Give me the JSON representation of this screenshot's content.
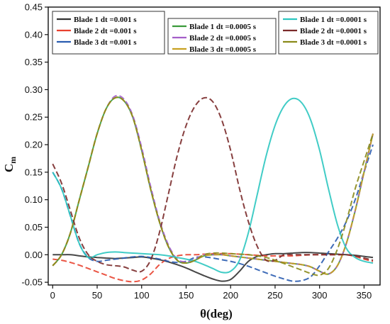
{
  "chart_data": {
    "type": "line",
    "title": "",
    "xlabel": "θ(deg)",
    "ylabel": "C",
    "ylabel_sub": "m",
    "xlim": [
      -5,
      368
    ],
    "ylim": [
      -0.055,
      0.45
    ],
    "xticks": [
      "0",
      "50",
      "100",
      "150",
      "200",
      "250",
      "300",
      "350"
    ],
    "yticks": [
      "-0.05",
      "0.00",
      "0.05",
      "0.10",
      "0.15",
      "0.20",
      "0.25",
      "0.30",
      "0.35",
      "0.40",
      "0.45"
    ],
    "legend_position": "top",
    "series": [
      {
        "name": "Blade 1 dt =0.001 s",
        "color": "#333333",
        "style": "solid",
        "legend_group": 0,
        "x": [
          0,
          10,
          20,
          30,
          40,
          50,
          60,
          70,
          80,
          90,
          100,
          110,
          120,
          130,
          140,
          150,
          160,
          170,
          180,
          190,
          200,
          210,
          220,
          230,
          240,
          250,
          260,
          270,
          280,
          290,
          300,
          310,
          320,
          330,
          340,
          350,
          360
        ],
        "y": [
          0.0,
          0.0,
          0.0,
          -0.002,
          -0.004,
          -0.005,
          -0.006,
          -0.007,
          -0.006,
          -0.005,
          -0.004,
          -0.006,
          -0.009,
          -0.013,
          -0.018,
          -0.024,
          -0.031,
          -0.038,
          -0.044,
          -0.048,
          -0.045,
          -0.03,
          -0.012,
          -0.003,
          0.0,
          0.002,
          0.002,
          0.003,
          0.004,
          0.004,
          0.003,
          0.002,
          0.001,
          0.0,
          -0.001,
          -0.003,
          -0.005
        ]
      },
      {
        "name": "Blade 2 dt =0.001 s",
        "color": "#e8412f",
        "style": "solid",
        "legend_group": 0,
        "x": [
          0,
          10,
          20,
          30,
          40,
          50,
          60,
          70,
          80,
          90,
          100,
          110,
          120,
          130,
          140,
          150,
          160,
          170,
          180,
          190,
          200,
          210,
          220,
          230,
          240,
          250,
          260,
          270,
          280,
          290,
          300,
          310,
          320,
          330,
          340,
          350,
          360
        ],
        "y": [
          -0.008,
          -0.01,
          -0.014,
          -0.019,
          -0.025,
          -0.031,
          -0.037,
          -0.043,
          -0.047,
          -0.049,
          -0.046,
          -0.035,
          -0.018,
          -0.007,
          -0.002,
          0.0,
          0.0,
          0.001,
          0.002,
          0.002,
          0.002,
          0.001,
          0.0,
          -0.001,
          -0.002,
          -0.002,
          -0.002,
          -0.002,
          -0.001,
          0.0,
          0.0,
          0.0,
          0.0,
          0.0,
          -0.003,
          -0.008,
          -0.012
        ]
      },
      {
        "name": "Blade 3 dt =0.001 s",
        "color": "#2a5cb0",
        "style": "solid",
        "legend_group": 0,
        "x": [
          0,
          10,
          20,
          30,
          40,
          50,
          60,
          70,
          80,
          90,
          100,
          110,
          120,
          130,
          140,
          150,
          160,
          170,
          180,
          190,
          200,
          210,
          220,
          230,
          240,
          250,
          260,
          270,
          280,
          290,
          300,
          310,
          320,
          330,
          340,
          350,
          360
        ],
        "y": [
          0.15,
          0.12,
          0.07,
          0.02,
          -0.005,
          -0.012,
          -0.01,
          -0.008,
          -0.006,
          -0.004,
          -0.003,
          -0.005,
          -0.008,
          -0.012,
          -0.014,
          -0.012,
          -0.005,
          -0.004,
          -0.006,
          -0.009,
          -0.012,
          -0.016,
          -0.021,
          -0.027,
          -0.033,
          -0.039,
          -0.044,
          -0.048,
          -0.047,
          -0.04,
          -0.02,
          0.005,
          0.03,
          0.06,
          0.1,
          0.15,
          0.2
        ]
      },
      {
        "name": "Blade 1 dt =0.0005 s",
        "color": "#3a9a3a",
        "style": "solid",
        "legend_group": 1,
        "x": [
          0,
          10,
          20,
          30,
          40,
          50,
          60,
          70,
          80,
          90,
          100,
          110,
          120,
          130,
          140,
          150,
          160,
          170,
          180,
          190,
          200,
          210,
          220,
          230,
          240,
          250,
          260,
          270,
          280,
          290,
          300,
          310,
          320,
          330,
          340,
          350,
          360
        ],
        "y": [
          -0.02,
          0.0,
          0.04,
          0.1,
          0.16,
          0.22,
          0.265,
          0.285,
          0.28,
          0.25,
          0.19,
          0.12,
          0.06,
          0.015,
          -0.01,
          -0.015,
          -0.01,
          -0.002,
          0.0,
          0.0,
          -0.002,
          -0.004,
          -0.006,
          -0.008,
          -0.01,
          -0.012,
          -0.014,
          -0.016,
          -0.018,
          -0.022,
          -0.03,
          -0.035,
          -0.02,
          0.02,
          0.08,
          0.15,
          0.22
        ]
      },
      {
        "name": "Blade 2 dt =0.0005 s",
        "color": "#a45ec8",
        "style": "solid",
        "legend_group": 1,
        "x": [
          0,
          10,
          20,
          30,
          40,
          50,
          60,
          70,
          80,
          90,
          100,
          110,
          120,
          130,
          140,
          150,
          160,
          170,
          180,
          190,
          200,
          210,
          220,
          230,
          240,
          250,
          260,
          270,
          280,
          290,
          300,
          310,
          320,
          330,
          340,
          350,
          360
        ],
        "y": [
          -0.02,
          0.0,
          0.04,
          0.1,
          0.16,
          0.22,
          0.265,
          0.288,
          0.283,
          0.253,
          0.195,
          0.125,
          0.063,
          0.018,
          -0.008,
          -0.013,
          -0.008,
          0.0,
          0.0,
          0.0,
          -0.002,
          -0.004,
          -0.006,
          -0.008,
          -0.01,
          -0.012,
          -0.014,
          -0.016,
          -0.018,
          -0.022,
          -0.03,
          -0.035,
          -0.02,
          0.02,
          0.08,
          0.15,
          0.22
        ]
      },
      {
        "name": "Blade 3 dt =0.0005 s",
        "color": "#c8a020",
        "style": "solid",
        "legend_group": 1,
        "x": [
          0,
          10,
          20,
          30,
          40,
          50,
          60,
          70,
          80,
          90,
          100,
          110,
          120,
          130,
          140,
          150,
          160,
          170,
          180,
          190,
          200,
          210,
          220,
          230,
          240,
          250,
          260,
          270,
          280,
          290,
          300,
          310,
          320,
          330,
          340,
          350,
          360
        ],
        "y": [
          -0.02,
          0.0,
          0.04,
          0.1,
          0.16,
          0.22,
          0.265,
          0.285,
          0.28,
          0.25,
          0.19,
          0.12,
          0.06,
          0.015,
          -0.01,
          -0.015,
          -0.01,
          -0.002,
          0.0,
          0.0,
          -0.002,
          -0.004,
          -0.006,
          -0.008,
          -0.01,
          -0.012,
          -0.014,
          -0.016,
          -0.018,
          -0.022,
          -0.03,
          -0.035,
          -0.02,
          0.02,
          0.08,
          0.15,
          0.22
        ]
      },
      {
        "name": "Blade 1 dt =0.0001 s",
        "color": "#2cc6c0",
        "style": "solid",
        "legend_group": 2,
        "x": [
          0,
          10,
          20,
          30,
          40,
          50,
          60,
          70,
          80,
          90,
          100,
          110,
          120,
          130,
          140,
          150,
          160,
          170,
          180,
          190,
          200,
          210,
          220,
          230,
          240,
          250,
          260,
          270,
          280,
          290,
          300,
          310,
          320,
          330,
          340,
          350,
          360
        ],
        "y": [
          0.15,
          0.12,
          0.07,
          0.02,
          -0.005,
          0.0,
          0.004,
          0.005,
          0.004,
          0.003,
          0.002,
          0.001,
          0.0,
          -0.002,
          -0.005,
          -0.008,
          -0.012,
          -0.018,
          -0.025,
          -0.032,
          -0.03,
          -0.01,
          0.04,
          0.11,
          0.18,
          0.235,
          0.27,
          0.284,
          0.276,
          0.245,
          0.19,
          0.12,
          0.055,
          0.012,
          -0.005,
          -0.012,
          -0.015
        ]
      },
      {
        "name": "Blade 2 dt =0.0001 s",
        "color": "#7a2a2a",
        "style": "solid",
        "legend_group": 2,
        "x": [
          0,
          10,
          20,
          30,
          40,
          50,
          60,
          70,
          80,
          90,
          100,
          110,
          120,
          130,
          140,
          150,
          160,
          170,
          180,
          190,
          200,
          210,
          220,
          230,
          240,
          250,
          260,
          270,
          280,
          290,
          300,
          310,
          320,
          330,
          340,
          350,
          360
        ],
        "y": [
          0.165,
          0.13,
          0.08,
          0.03,
          0.0,
          -0.012,
          -0.018,
          -0.02,
          -0.022,
          -0.028,
          -0.03,
          -0.01,
          0.04,
          0.11,
          0.18,
          0.235,
          0.27,
          0.285,
          0.278,
          0.245,
          0.19,
          0.12,
          0.06,
          0.015,
          -0.01,
          -0.01,
          0.0,
          0.0,
          0.0,
          0.0,
          0.0,
          0.0,
          0.0,
          0.0,
          -0.002,
          -0.006,
          -0.01
        ]
      },
      {
        "name": "Blade 3 dt =0.0001 s",
        "color": "#8a8a1a",
        "style": "solid",
        "legend_group": 2,
        "x": [
          0,
          10,
          20,
          30,
          40,
          50,
          60,
          70,
          80,
          90,
          100,
          110,
          120,
          130,
          140,
          150,
          160,
          170,
          180,
          190,
          200,
          210,
          220,
          230,
          240,
          250,
          260,
          270,
          280,
          290,
          300,
          310,
          320,
          330,
          340,
          350,
          360
        ],
        "y": [
          -0.02,
          0.0,
          0.04,
          0.1,
          0.16,
          0.22,
          0.265,
          0.285,
          0.28,
          0.25,
          0.19,
          0.12,
          0.06,
          0.015,
          -0.01,
          -0.015,
          -0.01,
          0.0,
          0.003,
          0.003,
          0.002,
          0.001,
          0.0,
          -0.002,
          -0.005,
          -0.01,
          -0.016,
          -0.022,
          -0.028,
          -0.034,
          -0.037,
          -0.025,
          0.01,
          0.06,
          0.12,
          0.17,
          0.22
        ]
      }
    ]
  }
}
